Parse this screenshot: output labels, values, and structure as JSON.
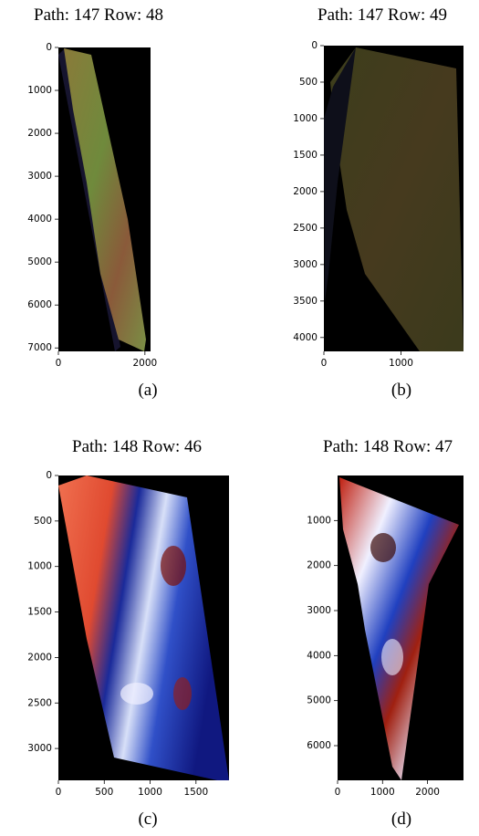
{
  "chart_data": [
    {
      "type": "image",
      "title": "Path: 147 Row: 48",
      "caption": "(a)",
      "xlim": [
        0,
        2130
      ],
      "ylim": [
        0,
        7080
      ],
      "xticks": [
        0,
        2000
      ],
      "yticks": [
        0,
        1000,
        2000,
        3000,
        4000,
        5000,
        6000,
        7000
      ]
    },
    {
      "type": "image",
      "title": "Path: 147 Row: 49",
      "caption": "(b)",
      "xlim": [
        0,
        1810
      ],
      "ylim": [
        0,
        4190
      ],
      "xticks": [
        0,
        1000
      ],
      "yticks": [
        0,
        500,
        1000,
        1500,
        2000,
        2500,
        3000,
        3500,
        4000
      ]
    },
    {
      "type": "image",
      "title": "Path: 148 Row: 46",
      "caption": "(c)",
      "xlim": [
        0,
        1860
      ],
      "ylim": [
        0,
        3350
      ],
      "xticks": [
        0,
        500,
        1000,
        1500
      ],
      "yticks": [
        0,
        500,
        1000,
        1500,
        2000,
        2500,
        3000
      ]
    },
    {
      "type": "image",
      "title": "Path: 148 Row: 47",
      "caption": "(d)",
      "xlim": [
        0,
        2800
      ],
      "ylim": [
        0,
        6770
      ],
      "xticks": [
        0,
        1000,
        2000
      ],
      "yticks": [
        1000,
        2000,
        3000,
        4000,
        5000,
        6000
      ]
    }
  ]
}
